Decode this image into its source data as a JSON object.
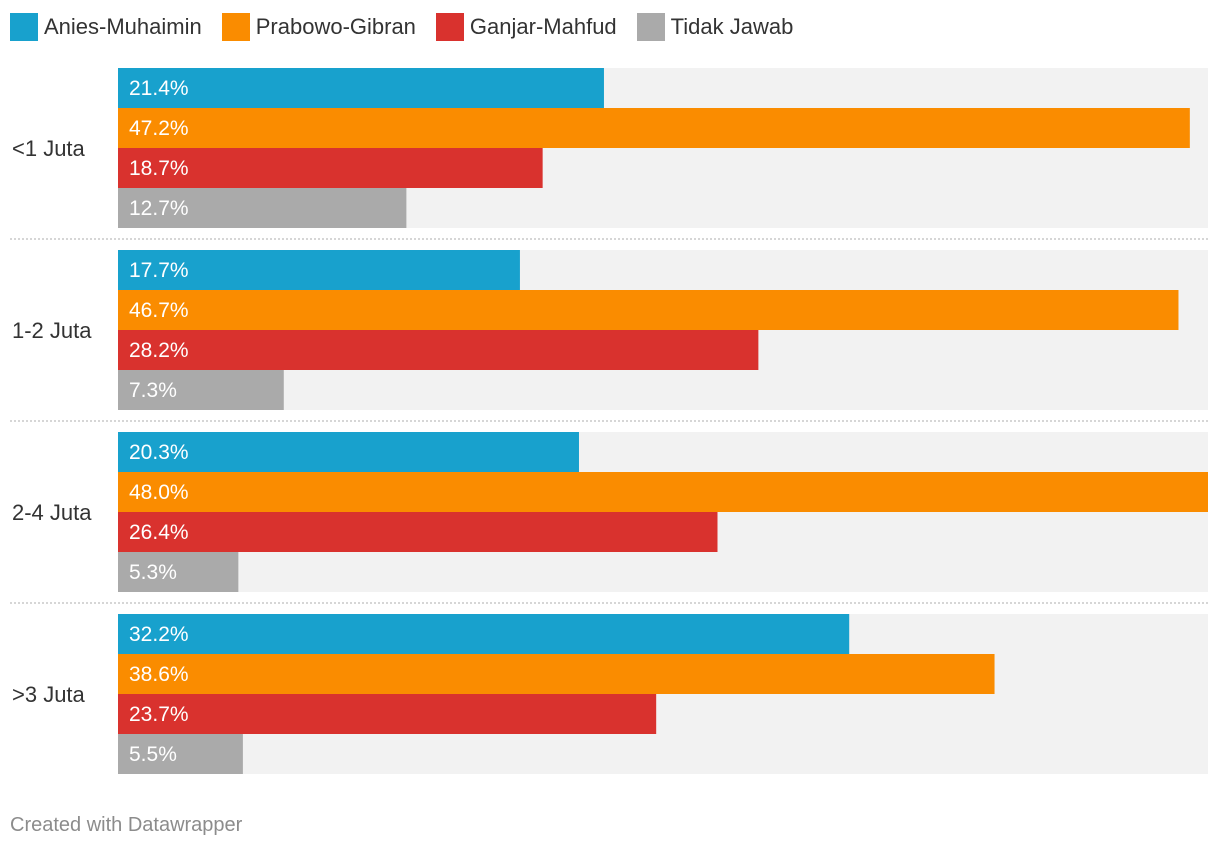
{
  "chart_data": {
    "type": "bar",
    "orientation": "horizontal",
    "grouped": true,
    "title": "",
    "xlabel": "",
    "ylabel": "",
    "xlim": [
      0,
      48.0
    ],
    "grid": false,
    "legend_position": "top-left",
    "value_suffix": "%",
    "categories": [
      "<1 Juta",
      "1-2 Juta",
      "2-4 Juta",
      ">3 Juta"
    ],
    "series": [
      {
        "name": "Anies-Muhaimin",
        "color": "#18a1cd",
        "values": [
          21.4,
          17.7,
          20.3,
          32.2
        ]
      },
      {
        "name": "Prabowo-Gibran",
        "color": "#fa8c00",
        "values": [
          47.2,
          46.7,
          48.0,
          38.6
        ]
      },
      {
        "name": "Ganjar-Mahfud",
        "color": "#d9322e",
        "values": [
          18.7,
          28.2,
          26.4,
          23.7
        ]
      },
      {
        "name": "Tidak Jawab",
        "color": "#aaaaaa",
        "values": [
          12.7,
          7.3,
          5.3,
          5.5
        ]
      }
    ]
  },
  "footer": {
    "credit": "Created with Datawrapper"
  }
}
